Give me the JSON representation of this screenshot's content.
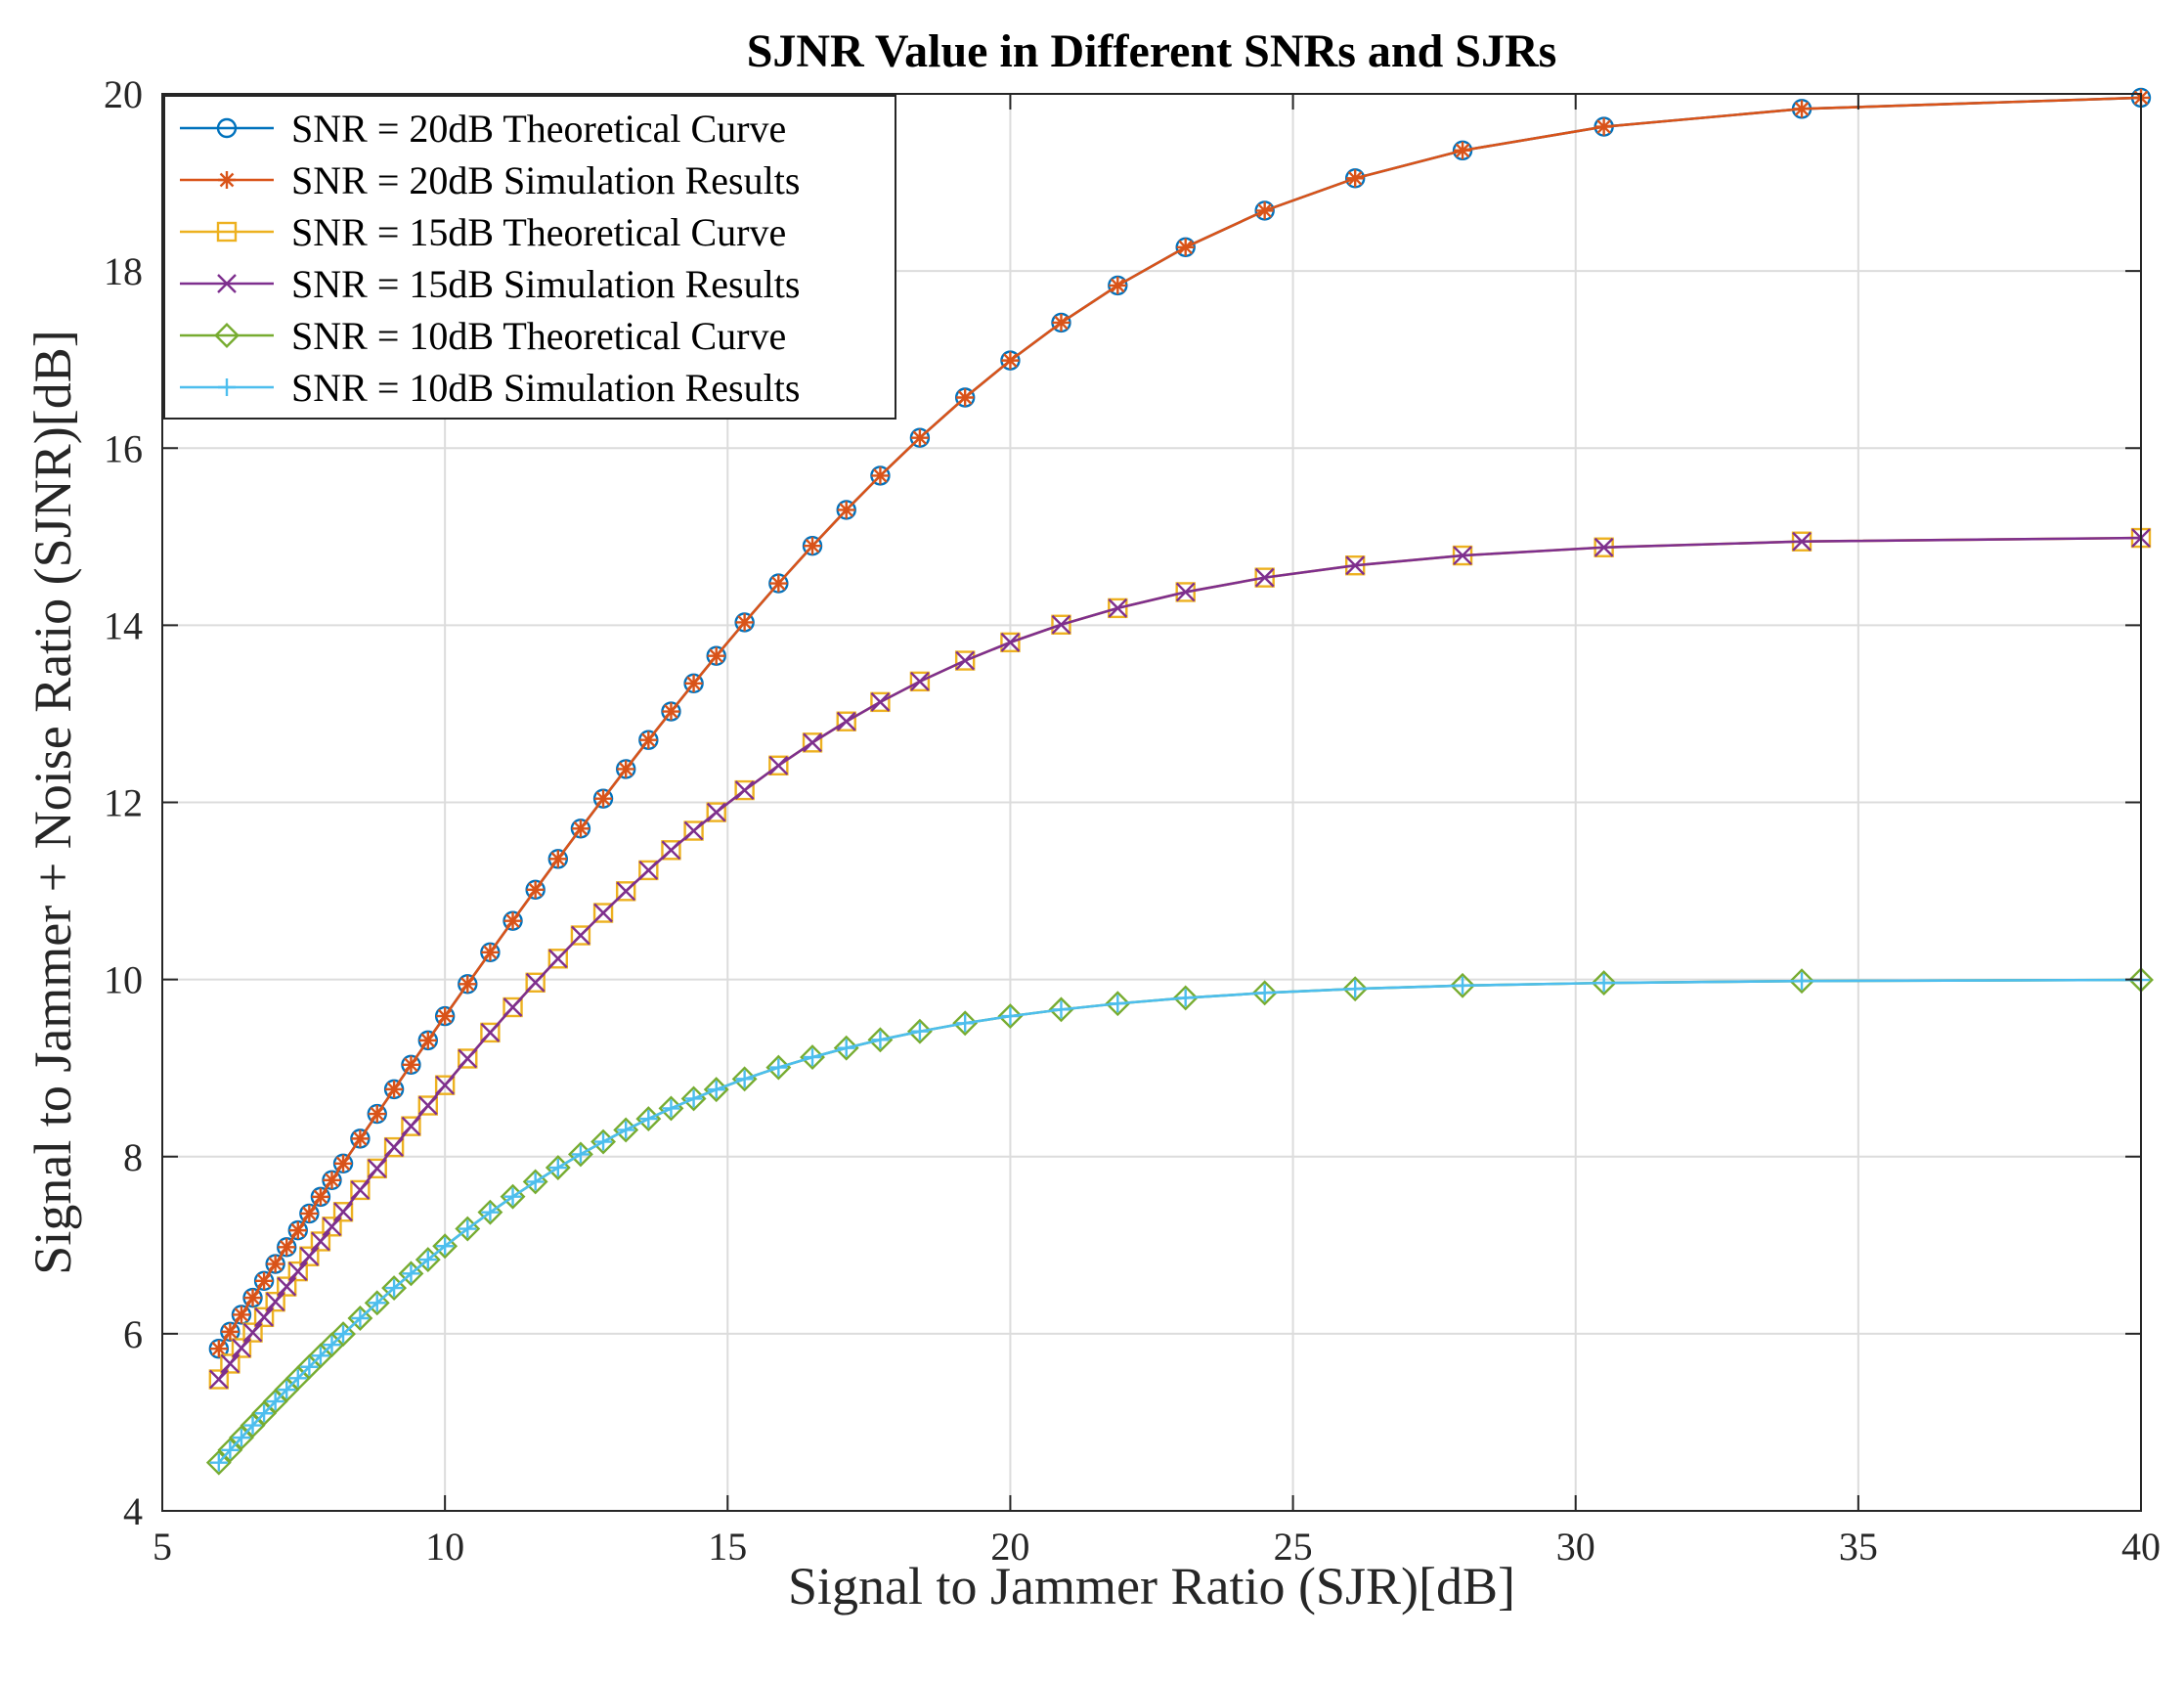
{
  "chart_data": {
    "type": "line",
    "title": "SJNR Value in Different SNRs and SJRs",
    "xlabel": "Signal to Jammer Ratio (SJR)[dB]",
    "ylabel": "Signal to Jammer + Noise Ratio (SJNR)[dB]",
    "xlim": [
      5,
      40
    ],
    "ylim": [
      4,
      20
    ],
    "xticks": [
      5,
      10,
      15,
      20,
      25,
      30,
      35,
      40
    ],
    "yticks": [
      4,
      6,
      8,
      10,
      12,
      14,
      16,
      18,
      20
    ],
    "grid": true,
    "legend_position": "top-left",
    "x": [
      6.0,
      6.2,
      6.4,
      6.6,
      6.8,
      7.0,
      7.2,
      7.4,
      7.6,
      7.8,
      8.0,
      8.2,
      8.5,
      8.8,
      9.1,
      9.4,
      9.7,
      10.0,
      10.4,
      10.8,
      11.2,
      11.6,
      12.0,
      12.4,
      12.8,
      13.2,
      13.6,
      14.0,
      14.4,
      14.8,
      15.3,
      15.9,
      16.5,
      17.1,
      17.7,
      18.4,
      19.2,
      20.0,
      20.9,
      21.9,
      23.1,
      24.5,
      26.1,
      28.0,
      30.5,
      34.0,
      40.0
    ],
    "series": [
      {
        "name": "SNR = 20dB Theoretical Curve",
        "snr_db": 20,
        "marker": "circle",
        "color": "#0072BD"
      },
      {
        "name": "SNR = 20dB Simulation Results",
        "snr_db": 20,
        "marker": "asterisk",
        "color": "#D95319"
      },
      {
        "name": "SNR = 15dB Theoretical Curve",
        "snr_db": 15,
        "marker": "square",
        "color": "#EDB120"
      },
      {
        "name": "SNR = 15dB Simulation Results",
        "snr_db": 15,
        "marker": "x",
        "color": "#7E2F8E"
      },
      {
        "name": "SNR = 10dB Theoretical Curve",
        "snr_db": 10,
        "marker": "diamond",
        "color": "#77AC30"
      },
      {
        "name": "SNR = 10dB Simulation Results",
        "snr_db": 10,
        "marker": "plus",
        "color": "#4DBEEE"
      }
    ]
  }
}
